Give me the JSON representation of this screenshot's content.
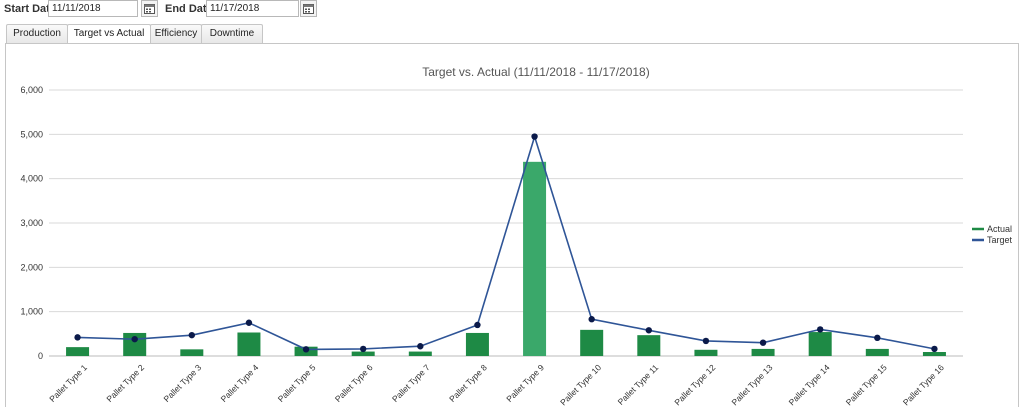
{
  "filters": {
    "start_label": "Start Date:",
    "start_value": "11/11/2018",
    "end_label": "End Date:",
    "end_value": "11/17/2018",
    "calendar_icon": "calendar-icon"
  },
  "tabs": [
    {
      "label": "Production",
      "active": false
    },
    {
      "label": "Target vs Actual",
      "active": true
    },
    {
      "label": "Efficiency",
      "active": false
    },
    {
      "label": "Downtime",
      "active": false
    }
  ],
  "colors": {
    "actual": "#1e8a45",
    "actual_highlight": "#3aa86a",
    "target": "#2f5597",
    "marker": "#0b1a4a",
    "grid": "#d9d9d9",
    "axis_text": "#333333",
    "title_text": "#555555"
  },
  "chart_data": {
    "type": "bar",
    "title": "Target vs. Actual (11/11/2018 - 11/17/2018)",
    "xlabel": "",
    "ylabel": "",
    "ylim": [
      0,
      6000
    ],
    "yticks": [
      "0",
      "1,000",
      "2,000",
      "3,000",
      "4,000",
      "5,000",
      "6,000"
    ],
    "grid": true,
    "legend_position": "right",
    "categories": [
      "Pallet Type 1",
      "Pallet Type 2",
      "Pallet Type 3",
      "Pallet Type 4",
      "Pallet Type 5",
      "Pallet Type 6",
      "Pallet Type 7",
      "Pallet Type 8",
      "Pallet Type 9",
      "Pallet Type 10",
      "Pallet Type 11",
      "Pallet Type 12",
      "Pallet Type 13",
      "Pallet Type 14",
      "Pallet Type 15",
      "Pallet Type 16"
    ],
    "series": [
      {
        "name": "Actual",
        "type": "bar",
        "values": [
          200,
          520,
          150,
          530,
          210,
          100,
          100,
          520,
          4380,
          590,
          470,
          140,
          160,
          540,
          160,
          90
        ]
      },
      {
        "name": "Target",
        "type": "line",
        "values": [
          420,
          380,
          470,
          750,
          150,
          160,
          220,
          700,
          4950,
          830,
          580,
          340,
          300,
          600,
          410,
          160
        ]
      }
    ]
  }
}
